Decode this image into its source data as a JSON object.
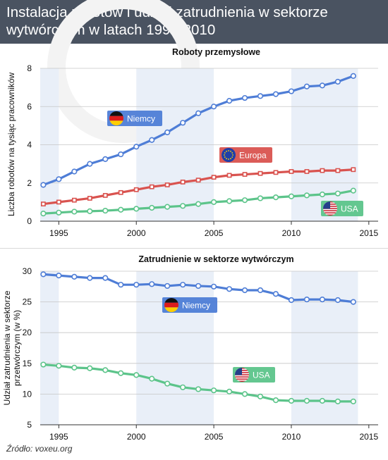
{
  "header": {
    "title": "Instalacja robotów i udział zatrudnienia w sektorze wytwórczym w latach 1994-2010"
  },
  "source": "Źródło: voxeu.org",
  "colors": {
    "header_bg": "#4a5361",
    "niemcy": "#4e7dd6",
    "europa": "#d9534f",
    "usa": "#5cc48a",
    "shade": "#e9eff8"
  },
  "chart_data": [
    {
      "type": "line",
      "title": "Roboty przemysłowe",
      "xlabel": "",
      "ylabel": "Liczba robotów na tysiąc pracowników",
      "x": [
        1994,
        1995,
        1996,
        1997,
        1998,
        1999,
        2000,
        2001,
        2002,
        2003,
        2004,
        2005,
        2006,
        2007,
        2008,
        2009,
        2010,
        2011,
        2012,
        2013,
        2014
      ],
      "xticks": [
        1995,
        2000,
        2005,
        2010,
        2015
      ],
      "xlim": [
        1993.8,
        2015.6
      ],
      "ylim": [
        0,
        8
      ],
      "yticks": [
        0,
        2,
        4,
        6,
        8
      ],
      "grid": true,
      "series": [
        {
          "name": "Niemcy",
          "color": "#4e7dd6",
          "icon": "germany-flag-icon",
          "values": [
            1.9,
            2.2,
            2.6,
            3.0,
            3.25,
            3.5,
            3.9,
            4.25,
            4.65,
            5.15,
            5.65,
            6.0,
            6.3,
            6.45,
            6.55,
            6.65,
            6.8,
            7.05,
            7.1,
            7.3,
            7.6
          ]
        },
        {
          "name": "Europa",
          "color": "#d9534f",
          "icon": "eu-flag-icon",
          "values": [
            0.9,
            1.0,
            1.1,
            1.2,
            1.35,
            1.5,
            1.65,
            1.8,
            1.9,
            2.05,
            2.15,
            2.3,
            2.4,
            2.45,
            2.5,
            2.55,
            2.6,
            2.6,
            2.65,
            2.65,
            2.7
          ]
        },
        {
          "name": "USA",
          "color": "#5cc48a",
          "icon": "usa-flag-icon",
          "values": [
            0.4,
            0.45,
            0.5,
            0.52,
            0.55,
            0.6,
            0.65,
            0.7,
            0.75,
            0.8,
            0.9,
            1.0,
            1.05,
            1.1,
            1.2,
            1.25,
            1.3,
            1.35,
            1.4,
            1.45,
            1.6
          ]
        }
      ]
    },
    {
      "type": "line",
      "title": "Zatrudnienie w sektorze wytwórczym",
      "xlabel": "",
      "ylabel": "Udział zatrudnienia w sektorze przetwórczym (w %)",
      "x": [
        1994,
        1995,
        1996,
        1997,
        1998,
        1999,
        2000,
        2001,
        2002,
        2003,
        2004,
        2005,
        2006,
        2007,
        2008,
        2009,
        2010,
        2011,
        2012,
        2013,
        2014
      ],
      "xticks": [
        1995,
        2000,
        2005,
        2010,
        2015
      ],
      "xlim": [
        1993.8,
        2015.6
      ],
      "ylim": [
        5,
        30
      ],
      "yticks": [
        5,
        10,
        15,
        20,
        25,
        30
      ],
      "grid": true,
      "series": [
        {
          "name": "Niemcy",
          "color": "#4e7dd6",
          "icon": "germany-flag-icon",
          "values": [
            29.5,
            29.3,
            29.1,
            28.9,
            28.9,
            27.8,
            27.8,
            27.9,
            27.6,
            27.8,
            27.6,
            27.5,
            27.1,
            26.9,
            26.9,
            26.3,
            25.3,
            25.4,
            25.4,
            25.3,
            25.0
          ]
        },
        {
          "name": "USA",
          "color": "#5cc48a",
          "icon": "usa-flag-icon",
          "values": [
            14.8,
            14.6,
            14.3,
            14.2,
            13.9,
            13.4,
            13.1,
            12.5,
            11.7,
            11.1,
            10.8,
            10.6,
            10.4,
            10.0,
            9.6,
            9.0,
            8.9,
            8.9,
            8.9,
            8.8,
            8.8
          ]
        }
      ]
    }
  ]
}
